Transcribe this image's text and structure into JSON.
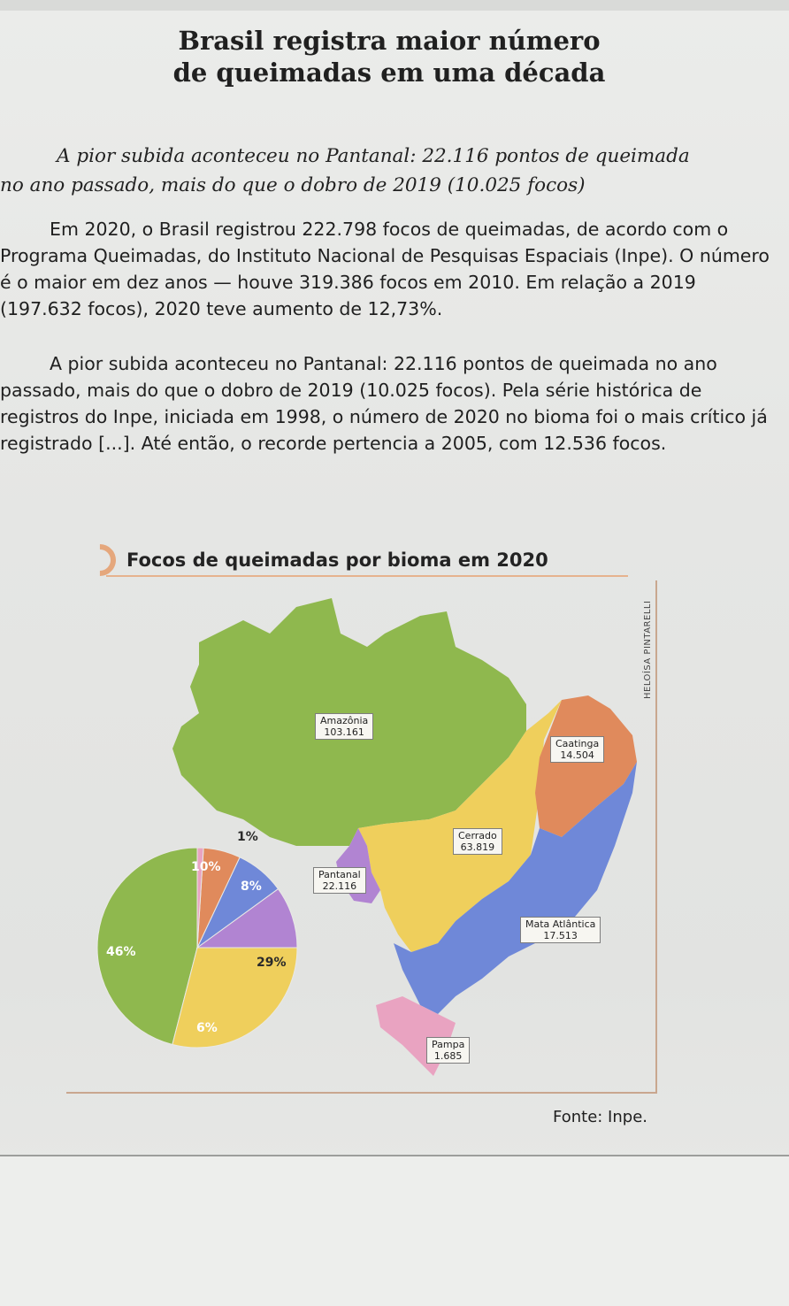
{
  "article": {
    "headline_line1": "Brasil registra maior número",
    "headline_line2": "de queimadas em uma década",
    "subtitle_line1": "A pior subida aconteceu no Pantanal: 22.116 pontos de queimada",
    "subtitle_line2": "no ano passado, mais do que o dobro de 2019 (10.025 focos)",
    "paragraph1": "Em 2020, o Brasil registrou 222.798 focos de queimadas, de acordo com o Programa Queimadas, do Instituto Nacional de Pesquisas Espaciais (Inpe). O número é o maior em dez anos — houve 319.386 focos em 2010. Em relação a 2019 (197.632 focos), 2020 teve aumento de 12,73%.",
    "paragraph2": "A pior subida aconteceu no Pantanal: 22.116 pontos de queimada no ano passado, mais do que o dobro de 2019 (10.025 focos). Pela série histórica de registros do Inpe, iniciada em 1998, o número de 2020 no bioma foi o mais crítico já registrado [...]. Até então, o recorde pertencia a 2005, com 12.536 focos."
  },
  "figure": {
    "title": "Focos de queimadas por bioma em 2020",
    "credit": "HELOÍSA PINTARELLI",
    "source": "Fonte: Inpe.",
    "biomes": [
      {
        "name": "Amazônia",
        "value": "103.161",
        "color": "#8fb84e"
      },
      {
        "name": "Caatinga",
        "value": "14.504",
        "color": "#e08a5c"
      },
      {
        "name": "Cerrado",
        "value": "63.819",
        "color": "#efcf5c"
      },
      {
        "name": "Pantanal",
        "value": "22.116",
        "color": "#b184d2"
      },
      {
        "name": "Mata Atlântica",
        "value": "17.513",
        "color": "#6f88d8"
      },
      {
        "name": "Pampa",
        "value": "1.685",
        "color": "#e9a3c1"
      }
    ],
    "pie_labels": [
      "46%",
      "29%",
      "10%",
      "8%",
      "6%",
      "1%"
    ]
  },
  "chart_data": {
    "type": "pie",
    "title": "Focos de queimadas por bioma em 2020",
    "slices": [
      {
        "label": "Amazônia",
        "value": 46,
        "color": "#8fb84e"
      },
      {
        "label": "Cerrado",
        "value": 29,
        "color": "#efcf5c"
      },
      {
        "label": "Pantanal",
        "value": 10,
        "color": "#b184d2"
      },
      {
        "label": "Mata Atlântica",
        "value": 8,
        "color": "#6f88d8"
      },
      {
        "label": "Caatinga",
        "value": 6,
        "color": "#e08a5c"
      },
      {
        "label": "Pampa",
        "value": 1,
        "color": "#e9a3c1"
      }
    ]
  }
}
